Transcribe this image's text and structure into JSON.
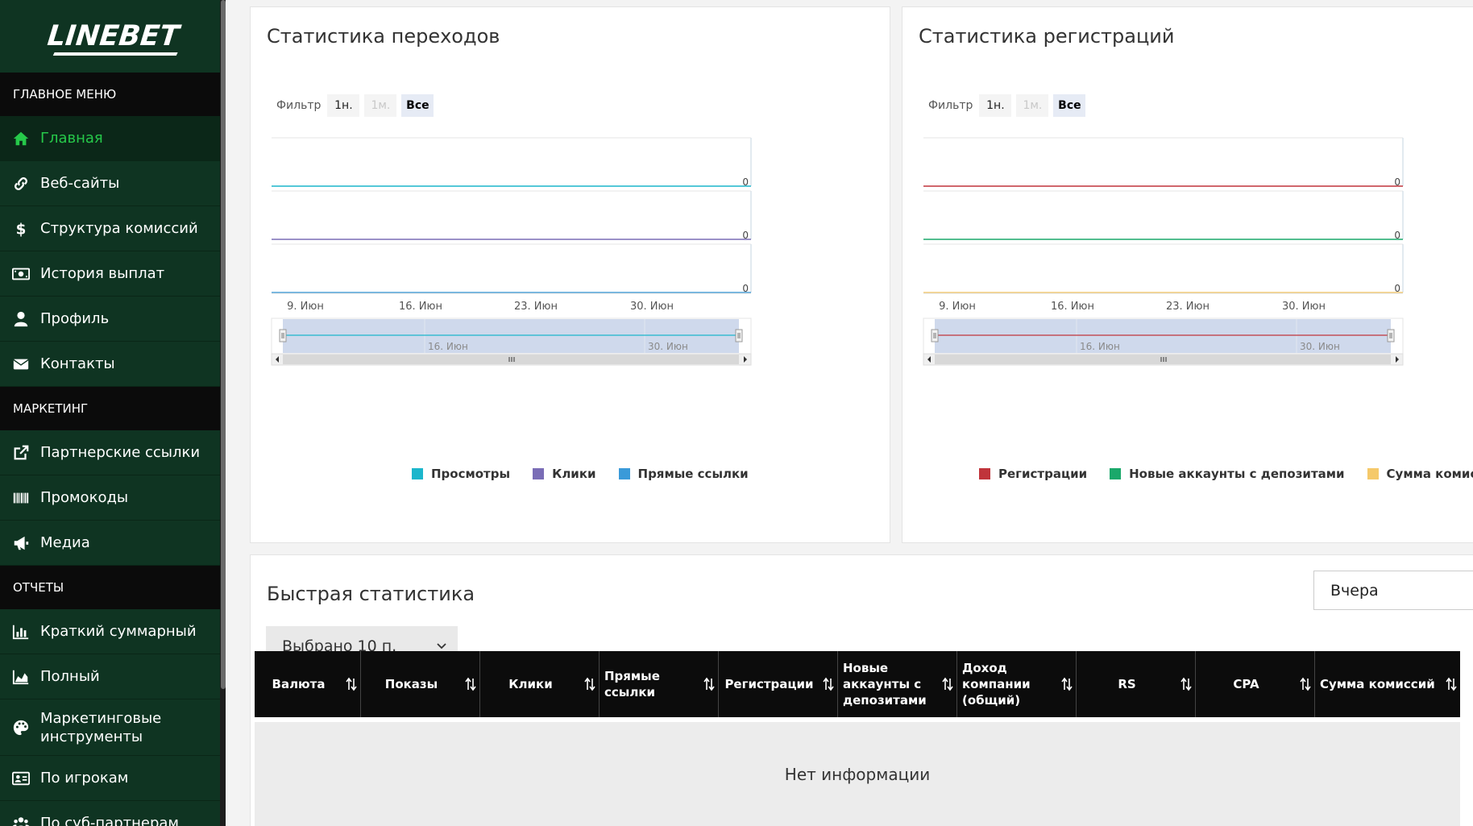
{
  "brand": {
    "logo": "LINEBET"
  },
  "sidebar": {
    "sections": [
      {
        "title": "ГЛАВНОЕ МЕНЮ",
        "items": [
          {
            "label": "Главная",
            "icon": "home-icon",
            "active": true
          },
          {
            "label": "Веб-сайты",
            "icon": "link-icon"
          },
          {
            "label": "Структура комиссий",
            "icon": "dollar-icon"
          },
          {
            "label": "История выплат",
            "icon": "cash-icon"
          },
          {
            "label": "Профиль",
            "icon": "user-icon"
          },
          {
            "label": "Контакты",
            "icon": "envelope-icon"
          }
        ]
      },
      {
        "title": "МАРКЕТИНГ",
        "items": [
          {
            "label": "Партнерские ссылки",
            "icon": "external-link-icon"
          },
          {
            "label": "Промокоды",
            "icon": "barcode-icon"
          },
          {
            "label": "Медиа",
            "icon": "megaphone-icon"
          }
        ]
      },
      {
        "title": "ОТЧЕТЫ",
        "items": [
          {
            "label": "Краткий суммарный",
            "icon": "bar-chart-icon"
          },
          {
            "label": "Полный",
            "icon": "area-chart-icon"
          },
          {
            "label": "Маркетинговые инструменты",
            "icon": "palette-icon"
          },
          {
            "label": "По игрокам",
            "icon": "id-card-icon"
          },
          {
            "label": "По суб-партнерам",
            "icon": "users-icon"
          }
        ]
      }
    ]
  },
  "transitions_panel": {
    "title": "Статистика переходов",
    "filter": {
      "label": "Фильтр",
      "buttons": [
        "1н.",
        "1м.",
        "Все"
      ],
      "selected": "Все",
      "disabled": "1м."
    },
    "chart_data": {
      "type": "line",
      "x": [
        "9. Июн",
        "16. Июн",
        "23. Июн",
        "30. Июн"
      ],
      "navigator_ticks": [
        "16. Июн",
        "30. Июн"
      ],
      "series": [
        {
          "name": "Просмотры",
          "values": [
            0,
            0,
            0,
            0
          ],
          "color": "#1cb6cc"
        },
        {
          "name": "Клики",
          "values": [
            0,
            0,
            0,
            0
          ],
          "color": "#7a6db6"
        },
        {
          "name": "Прямые ссылки",
          "values": [
            0,
            0,
            0,
            0
          ],
          "color": "#3a9ad9"
        }
      ],
      "axis_value_label": "0"
    }
  },
  "registrations_panel": {
    "title": "Статистика регистраций",
    "filter": {
      "label": "Фильтр",
      "buttons": [
        "1н.",
        "1м.",
        "Все"
      ],
      "selected": "Все",
      "disabled": "1м."
    },
    "chart_data": {
      "type": "line",
      "x": [
        "9. Июн",
        "16. Июн",
        "23. Июн",
        "30. Июн"
      ],
      "navigator_ticks": [
        "16. Июн",
        "30. Июн"
      ],
      "series": [
        {
          "name": "Регистрации",
          "values": [
            0,
            0,
            0,
            0
          ],
          "color": "#c0343b"
        },
        {
          "name": "Новые аккаунты с депозитами",
          "values": [
            0,
            0,
            0,
            0
          ],
          "color": "#1aa86a"
        },
        {
          "name": "Сумма комиссий",
          "values": [
            0,
            0,
            0,
            0
          ],
          "color": "#f5c96a"
        }
      ],
      "axis_value_label": "0"
    }
  },
  "quick_stats": {
    "title": "Быстрая статистика",
    "period_select": "Вчера",
    "columns_dropdown": "Выбрано 10 п.",
    "columns": [
      "Валюта",
      "Показы",
      "Клики",
      "Прямые ссылки",
      "Регистрации",
      "Новые аккаунты с депозитами",
      "Доход компании (общий)",
      "RS",
      "CPA",
      "Сумма комиссий"
    ],
    "empty_text": "Нет информации"
  }
}
